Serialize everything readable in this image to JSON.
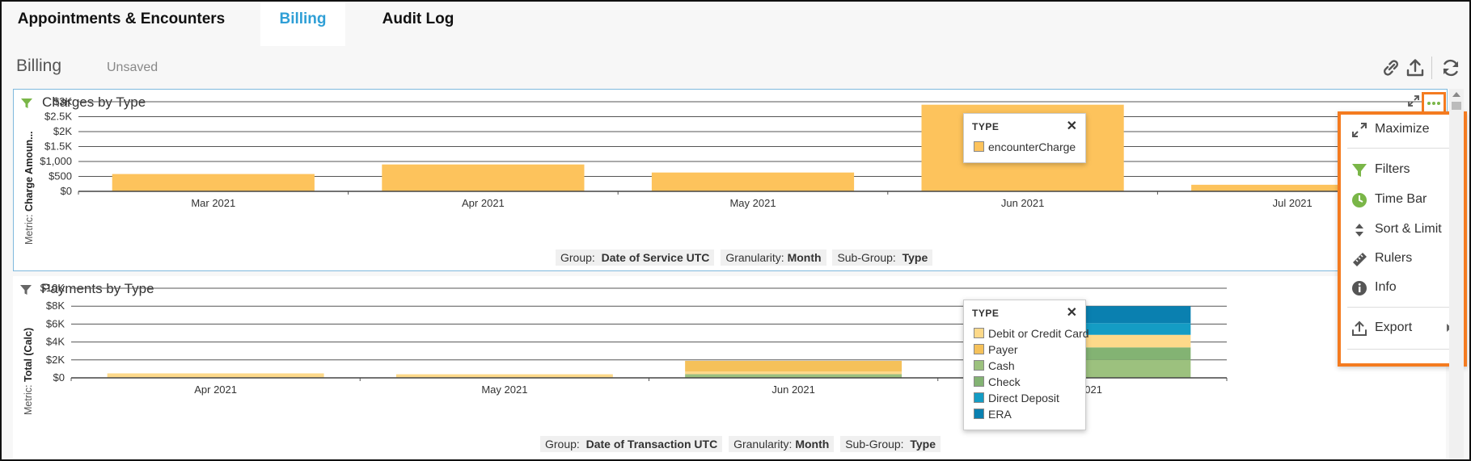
{
  "tabs": [
    {
      "label": "Appointments & Encounters",
      "active": false
    },
    {
      "label": "Billing",
      "active": true
    },
    {
      "label": "Audit Log",
      "active": false
    }
  ],
  "header": {
    "title": "Billing",
    "status": "Unsaved",
    "icons": [
      "link-icon",
      "export-icon",
      "refresh-icon"
    ]
  },
  "colors": {
    "accent": "#2f9fd6",
    "highlight": "#f47b20",
    "filter_active": "#7ab648"
  },
  "charges_panel": {
    "title": "Charges by Type",
    "metric_label": "Metric:",
    "metric_value": "Charge Amoun...",
    "group": {
      "group_label": "Group:",
      "group_value": "Date of Service UTC",
      "granularity_label": "Granularity:",
      "granularity_value": "Month",
      "subgroup_label": "Sub-Group:",
      "subgroup_value": "Type"
    },
    "legend": {
      "title": "TYPE",
      "items": [
        {
          "label": "encounterCharge",
          "color": "#fdc35c"
        }
      ]
    }
  },
  "payments_panel": {
    "title": "Payments by Type",
    "metric_label": "Metric:",
    "metric_value": "Total (Calc)",
    "group": {
      "group_label": "Group:",
      "group_value": "Date of Transaction UTC",
      "granularity_label": "Granularity:",
      "granularity_value": "Month",
      "subgroup_label": "Sub-Group:",
      "subgroup_value": "Type"
    },
    "legend": {
      "title": "TYPE",
      "items": [
        {
          "label": "Debit or Credit Card",
          "color": "#fdd98a"
        },
        {
          "label": "Payer",
          "color": "#f5c15a"
        },
        {
          "label": "Cash",
          "color": "#9cc17e"
        },
        {
          "label": "Check",
          "color": "#83b373"
        },
        {
          "label": "Direct Deposit",
          "color": "#149cc4"
        },
        {
          "label": "ERA",
          "color": "#0a80b0"
        }
      ]
    }
  },
  "context_menu": {
    "items": [
      {
        "label": "Maximize",
        "icon": "maximize-icon"
      },
      {
        "label": "Filters",
        "icon": "filter-icon"
      },
      {
        "label": "Time Bar",
        "icon": "clock-icon"
      },
      {
        "label": "Sort & Limit",
        "icon": "sort-icon"
      },
      {
        "label": "Rulers",
        "icon": "ruler-icon"
      },
      {
        "label": "Info",
        "icon": "info-icon"
      },
      {
        "label": "Export",
        "icon": "export-icon"
      }
    ]
  },
  "chart_data": [
    {
      "type": "bar",
      "title": "Charges by Type",
      "ylabel": "Charge Amoun...",
      "categories": [
        "Mar 2021",
        "Apr 2021",
        "May 2021",
        "Jun 2021",
        "Jul 2021"
      ],
      "series": [
        {
          "name": "encounterCharge",
          "values": [
            580,
            900,
            630,
            2900,
            220
          ]
        }
      ],
      "yticks": [
        "$0",
        "$500",
        "$1,000",
        "$1.5K",
        "$2K",
        "$2.5K",
        "$3K"
      ],
      "ylim": [
        0,
        3000
      ],
      "grid": true
    },
    {
      "type": "bar",
      "stacked": true,
      "title": "Payments by Type",
      "ylabel": "Total (Calc)",
      "categories": [
        "Apr 2021",
        "May 2021",
        "Jun 2021",
        "Jul 2021"
      ],
      "series": [
        {
          "name": "Cash",
          "values": [
            0,
            0,
            300,
            2000
          ]
        },
        {
          "name": "Check",
          "values": [
            0,
            0,
            100,
            1400
          ]
        },
        {
          "name": "Debit or Credit Card",
          "values": [
            500,
            400,
            300,
            1400
          ]
        },
        {
          "name": "Payer",
          "values": [
            0,
            0,
            1200,
            0
          ]
        },
        {
          "name": "Direct Deposit",
          "values": [
            0,
            0,
            0,
            1300
          ]
        },
        {
          "name": "ERA",
          "values": [
            0,
            0,
            0,
            1900
          ]
        }
      ],
      "yticks": [
        "$0",
        "$2K",
        "$4K",
        "$6K",
        "$8K",
        "$10K"
      ],
      "ylim": [
        0,
        10000
      ],
      "grid": true
    }
  ]
}
